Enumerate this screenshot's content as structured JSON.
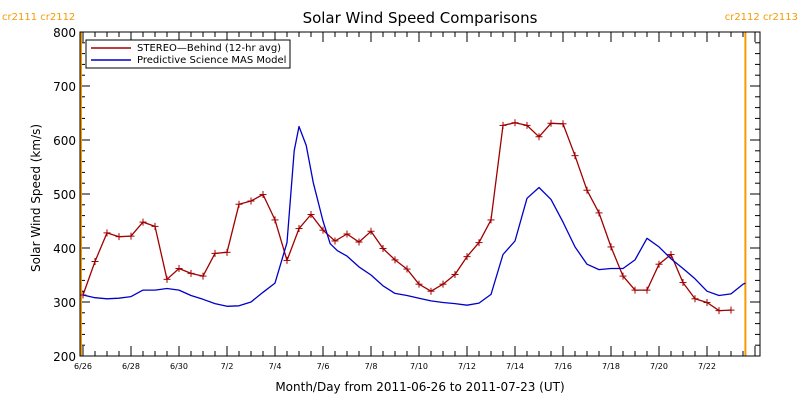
{
  "chart_data": {
    "type": "line",
    "title": "Solar Wind Speed Comparisons",
    "xlabel": "Month/Day from 2011-06-26 to 2011-07-23 (UT)",
    "ylabel": "Solar Wind Speed (km/s)",
    "ylim": [
      200,
      800
    ],
    "yticks": [
      200,
      300,
      400,
      500,
      600,
      700,
      800
    ],
    "xlim_days": [
      0,
      28
    ],
    "xticks": [
      {
        "day": 0,
        "label": "6/26"
      },
      {
        "day": 2,
        "label": "6/28"
      },
      {
        "day": 4,
        "label": "6/30"
      },
      {
        "day": 6,
        "label": "7/2"
      },
      {
        "day": 8,
        "label": "7/4"
      },
      {
        "day": 10,
        "label": "7/6"
      },
      {
        "day": 12,
        "label": "7/8"
      },
      {
        "day": 14,
        "label": "7/10"
      },
      {
        "day": 16,
        "label": "7/12"
      },
      {
        "day": 18,
        "label": "7/14"
      },
      {
        "day": 20,
        "label": "7/16"
      },
      {
        "day": 22,
        "label": "7/18"
      },
      {
        "day": 24,
        "label": "7/20"
      },
      {
        "day": 26,
        "label": "7/22"
      }
    ],
    "carrington_markers": [
      {
        "day": 0,
        "label": "cr2111 cr2112",
        "side": "left"
      },
      {
        "day": 27.6,
        "label": "cr2112 cr2113",
        "side": "right"
      }
    ],
    "legend_position": "top-left",
    "series": [
      {
        "name": "STEREO—Behind (12-hr avg)",
        "color": "#a00000",
        "markers": true,
        "points": [
          [
            0.0,
            313
          ],
          [
            0.5,
            375
          ],
          [
            1.0,
            428
          ],
          [
            1.5,
            421
          ],
          [
            2.0,
            422
          ],
          [
            2.5,
            448
          ],
          [
            3.0,
            440
          ],
          [
            3.5,
            342
          ],
          [
            4.0,
            362
          ],
          [
            4.5,
            353
          ],
          [
            5.0,
            348
          ],
          [
            5.5,
            390
          ],
          [
            6.0,
            392
          ],
          [
            6.5,
            481
          ],
          [
            7.0,
            487
          ],
          [
            7.5,
            499
          ],
          [
            8.0,
            452
          ],
          [
            8.5,
            377
          ],
          [
            9.0,
            436
          ],
          [
            9.5,
            462
          ],
          [
            10.0,
            433
          ],
          [
            10.5,
            413
          ],
          [
            11.0,
            426
          ],
          [
            11.5,
            411
          ],
          [
            12.0,
            431
          ],
          [
            12.5,
            399
          ],
          [
            13.0,
            378
          ],
          [
            13.5,
            361
          ],
          [
            14.0,
            333
          ],
          [
            14.5,
            320
          ],
          [
            15.0,
            333
          ],
          [
            15.5,
            351
          ],
          [
            16.0,
            384
          ],
          [
            16.5,
            410
          ],
          [
            17.0,
            452
          ],
          [
            17.5,
            627
          ],
          [
            18.0,
            632
          ],
          [
            18.5,
            627
          ],
          [
            19.0,
            606
          ],
          [
            19.5,
            631
          ],
          [
            20.0,
            630
          ],
          [
            20.5,
            571
          ],
          [
            21.0,
            507
          ],
          [
            21.5,
            465
          ],
          [
            22.0,
            402
          ],
          [
            22.5,
            348
          ],
          [
            23.0,
            322
          ],
          [
            23.5,
            322
          ],
          [
            24.0,
            370
          ],
          [
            24.5,
            388
          ],
          [
            25.0,
            336
          ],
          [
            25.5,
            306
          ],
          [
            26.0,
            299
          ],
          [
            26.5,
            284
          ],
          [
            27.0,
            285
          ]
        ]
      },
      {
        "name": "Predictive Science MAS Model",
        "color": "#0000c8",
        "markers": false,
        "points": [
          [
            0.0,
            313
          ],
          [
            0.5,
            308
          ],
          [
            1.0,
            306
          ],
          [
            1.5,
            307
          ],
          [
            2.0,
            310
          ],
          [
            2.5,
            322
          ],
          [
            3.0,
            322
          ],
          [
            3.5,
            325
          ],
          [
            4.0,
            322
          ],
          [
            4.5,
            312
          ],
          [
            5.0,
            305
          ],
          [
            5.5,
            297
          ],
          [
            6.0,
            292
          ],
          [
            6.5,
            293
          ],
          [
            7.0,
            300
          ],
          [
            7.5,
            318
          ],
          [
            8.0,
            335
          ],
          [
            8.5,
            410
          ],
          [
            8.8,
            580
          ],
          [
            9.0,
            625
          ],
          [
            9.3,
            590
          ],
          [
            9.6,
            520
          ],
          [
            10.0,
            450
          ],
          [
            10.3,
            408
          ],
          [
            10.6,
            395
          ],
          [
            11.0,
            385
          ],
          [
            11.5,
            365
          ],
          [
            12.0,
            350
          ],
          [
            12.5,
            330
          ],
          [
            13.0,
            316
          ],
          [
            13.5,
            312
          ],
          [
            14.0,
            307
          ],
          [
            14.5,
            302
          ],
          [
            15.0,
            299
          ],
          [
            15.5,
            297
          ],
          [
            16.0,
            294
          ],
          [
            16.5,
            298
          ],
          [
            17.0,
            314
          ],
          [
            17.5,
            388
          ],
          [
            18.0,
            413
          ],
          [
            18.5,
            492
          ],
          [
            19.0,
            512
          ],
          [
            19.5,
            490
          ],
          [
            20.0,
            448
          ],
          [
            20.5,
            402
          ],
          [
            21.0,
            370
          ],
          [
            21.5,
            360
          ],
          [
            22.0,
            362
          ],
          [
            22.5,
            362
          ],
          [
            23.0,
            378
          ],
          [
            23.5,
            418
          ],
          [
            24.0,
            402
          ],
          [
            24.5,
            380
          ],
          [
            25.0,
            362
          ],
          [
            25.5,
            343
          ],
          [
            26.0,
            320
          ],
          [
            26.5,
            312
          ],
          [
            27.0,
            315
          ],
          [
            27.5,
            333
          ],
          [
            27.6,
            335
          ]
        ]
      }
    ]
  }
}
